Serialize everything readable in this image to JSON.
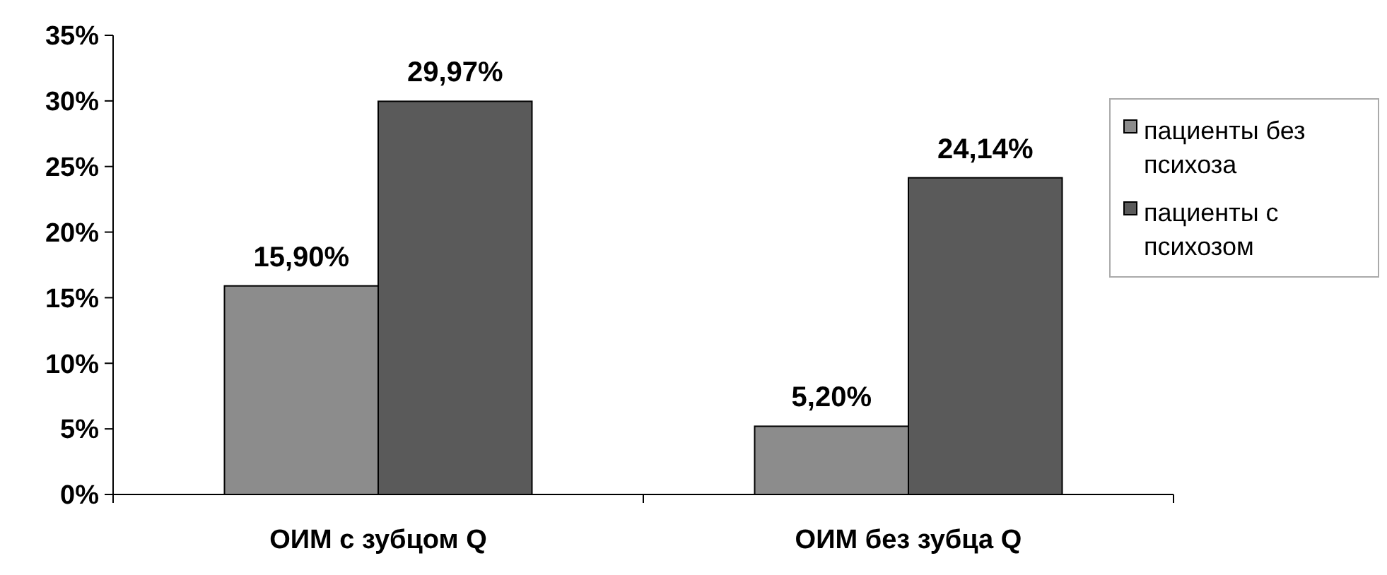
{
  "chart_data": {
    "type": "bar",
    "categories": [
      "ОИМ с зубцом Q",
      "ОИМ без зубца Q"
    ],
    "series": [
      {
        "name": "пациенты без психоза",
        "color": "#8c8c8c",
        "values": [
          15.9,
          5.2
        ],
        "value_labels": [
          "15,90%",
          "5,20%"
        ]
      },
      {
        "name": "пациенты с психозом",
        "color": "#5a5a5a",
        "values": [
          29.97,
          24.14
        ],
        "value_labels": [
          "29,97%",
          "24,14%"
        ]
      }
    ],
    "ylim": [
      0,
      35
    ],
    "yticks": [
      {
        "value": 0,
        "label": "0%"
      },
      {
        "value": 5,
        "label": "5%"
      },
      {
        "value": 10,
        "label": "10%"
      },
      {
        "value": 15,
        "label": "15%"
      },
      {
        "value": 20,
        "label": "20%"
      },
      {
        "value": 25,
        "label": "25%"
      },
      {
        "value": 30,
        "label": "30%"
      },
      {
        "value": 35,
        "label": "35%"
      }
    ],
    "legend": "right"
  }
}
